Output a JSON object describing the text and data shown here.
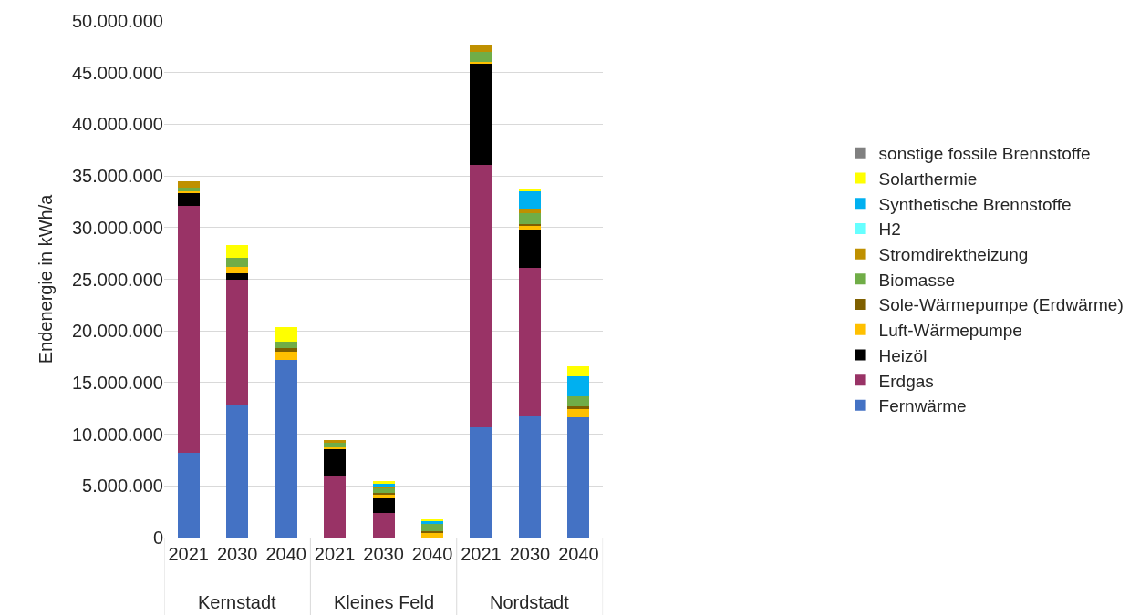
{
  "chart_data": {
    "type": "bar",
    "stacked": true,
    "ylabel": "Endenergie in kWh/a",
    "categories": [
      "2021",
      "2030",
      "2040",
      "2021",
      "2030",
      "2040",
      "2021",
      "2030",
      "2040"
    ],
    "annotations": [
      "Kernstadt",
      "Kleines Feld",
      "Nordstadt"
    ],
    "series": [
      {
        "name": "Fernwärme",
        "color": "#4472c4",
        "values": [
          8200000,
          12800000,
          17200000,
          0,
          0,
          0,
          10700000,
          11700000,
          11600000
        ]
      },
      {
        "name": "Erdgas",
        "color": "#993366",
        "values": [
          23900000,
          12200000,
          0,
          6000000,
          2400000,
          0,
          25400000,
          14400000,
          0
        ]
      },
      {
        "name": "Heizöl",
        "color": "#000000",
        "values": [
          1300000,
          600000,
          0,
          2600000,
          1400000,
          0,
          9800000,
          3700000,
          0
        ]
      },
      {
        "name": "Luft-Wärmepumpe",
        "color": "#ffc000",
        "values": [
          100000,
          600000,
          800000,
          100000,
          400000,
          500000,
          100000,
          400000,
          800000
        ]
      },
      {
        "name": "Sole-Wärmepumpe (Erdwärme)",
        "color": "#7f6000",
        "values": [
          0,
          0,
          300000,
          0,
          100000,
          100000,
          0,
          100000,
          300000
        ]
      },
      {
        "name": "Biomasse",
        "color": "#70ad47",
        "values": [
          400000,
          900000,
          700000,
          500000,
          500000,
          700000,
          1000000,
          1100000,
          1000000
        ]
      },
      {
        "name": "Stromdirektheizung",
        "color": "#bf9000",
        "values": [
          600000,
          0,
          0,
          200000,
          100000,
          0,
          700000,
          400000,
          0
        ]
      },
      {
        "name": "H2",
        "color": "#66ffff",
        "values": [
          0,
          0,
          0,
          0,
          0,
          0,
          0,
          0,
          0
        ]
      },
      {
        "name": "Synthetische Brennstoffe",
        "color": "#00b0f0",
        "values": [
          0,
          0,
          0,
          0,
          300000,
          300000,
          0,
          1700000,
          1900000
        ]
      },
      {
        "name": "Solarthermie",
        "color": "#ffff00",
        "values": [
          0,
          1200000,
          1400000,
          0,
          300000,
          200000,
          0,
          300000,
          1000000
        ]
      },
      {
        "name": "sonstige fossile Brennstoffe",
        "color": "#808080",
        "values": [
          0,
          0,
          0,
          0,
          0,
          0,
          0,
          0,
          0
        ]
      }
    ],
    "ylim": [
      0,
      50000000
    ],
    "yticks": [
      0,
      {
        "value": 5000000,
        "label": "5.000.000"
      },
      {
        "value": 10000000,
        "label": "10.000.000"
      },
      {
        "value": 15000000,
        "label": "15.000.000"
      },
      {
        "value": 20000000,
        "label": "20.000.000"
      },
      {
        "value": 25000000,
        "label": "25.000.000"
      },
      {
        "value": 30000000,
        "label": "30.000.000"
      },
      {
        "value": 35000000,
        "label": "35.000.000"
      },
      {
        "value": 40000000,
        "label": "40.000.000"
      },
      {
        "value": 45000000,
        "label": "45.000.000"
      },
      {
        "value": 50000000,
        "label": "50.000.000"
      }
    ],
    "grid": "y",
    "legend": "right"
  }
}
